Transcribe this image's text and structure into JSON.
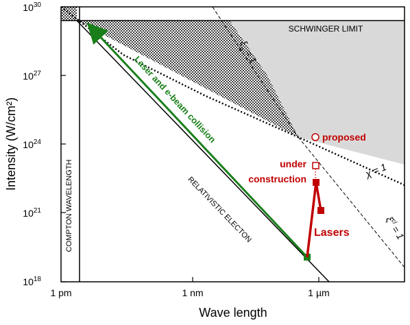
{
  "chart_data": {
    "type": "line",
    "xlabel": "Wave length",
    "ylabel": "Intensity (W/cm²)",
    "x_scale": "log",
    "y_scale": "log",
    "x_ticks": [
      "1 pm",
      "1 nm",
      "1 µm"
    ],
    "y_ticks": [
      "10^30",
      "10^27",
      "10^24",
      "10^21",
      "10^18"
    ],
    "y_tick_exponents": [
      "30",
      "27",
      "24",
      "21",
      "18"
    ],
    "xlim_m": [
      1e-12,
      1e-05
    ],
    "ylim": [
      1e+18,
      1e+30
    ],
    "boundaries": {
      "schwinger_limit": {
        "label": "SCHWINGER LIMIT",
        "intensity": 4.6e+29
      },
      "compton_wavelength": {
        "label": "COMPTON WAVELENGTH",
        "wavelength_m": 2.43e-12
      },
      "relativistic_electron": {
        "label": "RELATIVISTIC ELECTON"
      },
      "chi": {
        "label": "χ = 1"
      },
      "xi_cl": {
        "label": "ξ",
        "superscript": "cl",
        "suffix": " = 1"
      },
      "xi_q": {
        "label": "ξ",
        "subscript": "q",
        "suffix": " = 1"
      }
    },
    "series": [
      {
        "name": "Laser and e-beam collision",
        "color": "#1a7f1a",
        "points": [
          {
            "wavelength_m": 8e-07,
            "intensity": 2.5e+19
          },
          {
            "wavelength_m": 5e-12,
            "intensity": 3.5e+29
          }
        ]
      },
      {
        "name": "Lasers",
        "color": "#c00000",
        "points": [
          {
            "wavelength_m": 8e-07,
            "intensity": 2.5e+19
          },
          {
            "wavelength_m": 1e-06,
            "intensity": 4e+22
          },
          {
            "wavelength_m": 1.06e-06,
            "intensity": 1e+21
          }
        ]
      }
    ],
    "annotations": {
      "under_construction": {
        "label_line1": "under",
        "label_line2": "construction",
        "wavelength_m": 1e-06,
        "intensity": 1.5e+23
      },
      "proposed": {
        "label": "proposed",
        "wavelength_m": 1.2e-06,
        "intensity": 2.5e+24
      }
    },
    "colors": {
      "green": "#1a7f1a",
      "red": "#c00000",
      "gray_region": "#d9d9d9"
    }
  }
}
